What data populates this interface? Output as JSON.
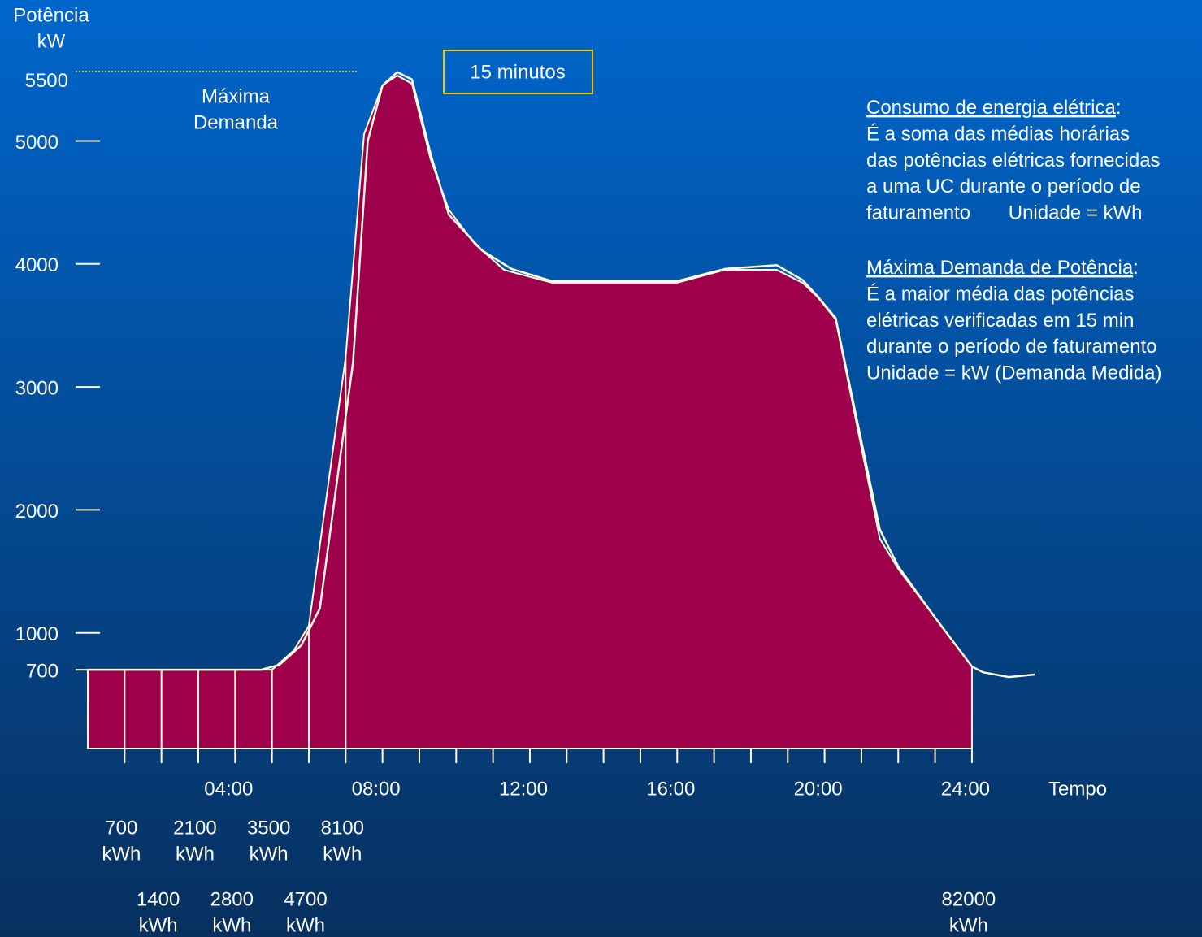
{
  "chart_data": {
    "type": "area",
    "y_title": [
      "Potência",
      "kW"
    ],
    "x_title": "Tempo",
    "annotation": [
      "Máxima",
      "Demanda"
    ],
    "box_label": "15 minutos",
    "highlight_color": "#f2c500",
    "ylim": [
      60,
      6100
    ],
    "yticks": [
      700,
      1000,
      2000,
      3000,
      4000,
      5000,
      5500
    ],
    "max_tick": 5500,
    "xlim": [
      0,
      26
    ],
    "xticks": [
      {
        "value": 4,
        "label": "04:00"
      },
      {
        "value": 8,
        "label": "08:00"
      },
      {
        "value": 12,
        "label": "12:00"
      },
      {
        "value": 16,
        "label": "16:00"
      },
      {
        "value": 20,
        "label": "20:00"
      },
      {
        "value": 24,
        "label": "24:00"
      }
    ],
    "xminorticks": [
      1,
      2,
      3,
      4,
      5,
      6,
      7,
      8,
      9,
      10,
      11,
      12,
      13,
      14,
      15,
      16,
      17,
      18,
      19,
      20,
      21,
      22,
      23,
      24
    ],
    "series": [
      {
        "role": "area",
        "color": "#9e004c",
        "x": [
          0,
          1,
          2,
          3,
          4,
          5,
          5.6,
          6,
          7,
          7.5,
          8,
          8.4,
          8.8,
          9.3,
          9.8,
          10.5,
          11.3,
          12.6,
          16,
          17.3,
          18.7,
          19.4,
          19.8,
          20.3,
          21.5,
          22,
          23,
          24
        ],
        "values": [
          700,
          700,
          700,
          700,
          700,
          700,
          860,
          1057,
          3240,
          5056,
          5453,
          5532,
          5466,
          4858,
          4441,
          4164,
          3952,
          3847,
          3847,
          3952,
          3952,
          3847,
          3734,
          3549,
          1765,
          1520,
          1124,
          727
        ]
      },
      {
        "role": "line",
        "color": "#fffbe0",
        "x": [
          0,
          4.7,
          5.2,
          5.8,
          6.3,
          7.2,
          7.6,
          8,
          8.4,
          8.8,
          9.3,
          9.8,
          10.7,
          11.5,
          12.6,
          16,
          17.3,
          18.7,
          19.4,
          19.8,
          20.3,
          21.5,
          22,
          23,
          24,
          24.3,
          25,
          25.7
        ],
        "values": [
          700,
          700,
          740,
          900,
          1200,
          3200,
          5000,
          5450,
          5560,
          5500,
          4900,
          4400,
          4110,
          3960,
          3860,
          3860,
          3960,
          3990,
          3870,
          3740,
          3560,
          1840,
          1540,
          1124,
          727,
          680,
          641,
          661
        ]
      }
    ],
    "energy": {
      "hours": [
        1,
        2,
        3,
        4,
        5,
        6,
        7,
        24
      ],
      "values": [
        700,
        1400,
        2100,
        2800,
        3500,
        4700,
        8100,
        82000
      ],
      "unit": "kWh"
    },
    "definitions": [
      {
        "term": "Consumo de energia elétrica",
        "suffix": ":",
        "lines": [
          "É a soma das médias horárias",
          "das potências elétricas fornecidas",
          "a uma UC durante o período de",
          "faturamento       Unidade = kWh"
        ]
      },
      {
        "term": "Máxima Demanda de Potência",
        "suffix": ":",
        "lines": [
          "É a maior média das potências",
          "elétricas verificadas em 15 min",
          "durante o período de faturamento",
          "Unidade = kW (Demanda Medida)"
        ]
      }
    ]
  }
}
